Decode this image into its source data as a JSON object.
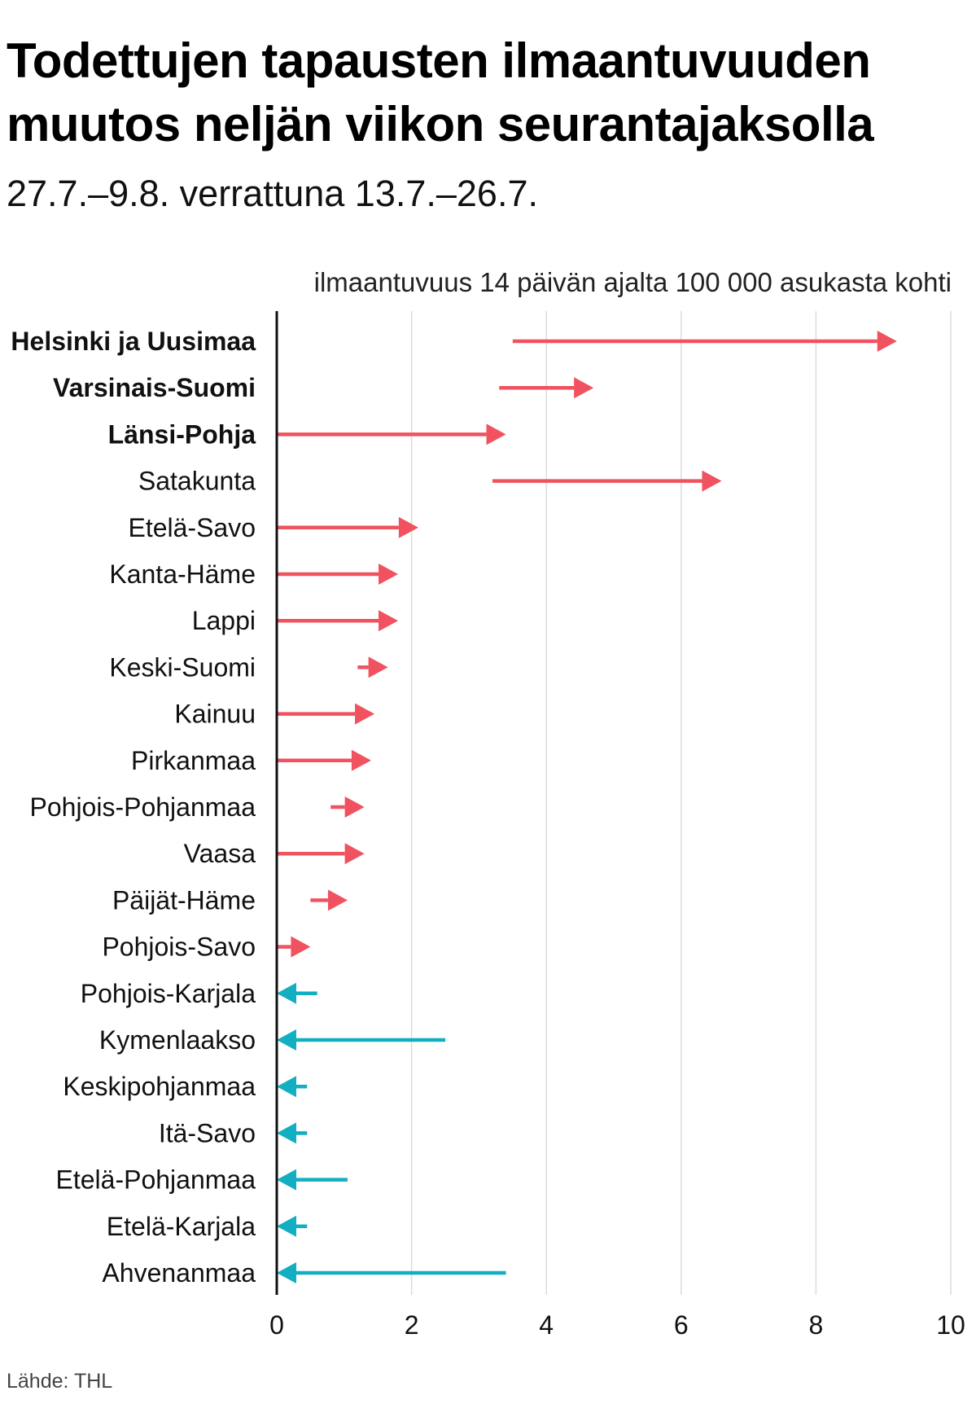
{
  "title": "Todettujen tapausten ilmaantuvuuden muutos neljän viikon seurantajaksolla",
  "subtitle": "27.7.–9.8. verrattuna 13.7.–26.7.",
  "source": "Lähde: THL",
  "colors": {
    "increase": "#f0525f",
    "decrease": "#12aec1",
    "grid": "#dcdcdc",
    "axis": "#111111"
  },
  "chart_data": {
    "type": "arrow",
    "xlabel": "ilmaantuvuus 14 päivän ajalta 100 000 asukasta kohti",
    "xlim": [
      0,
      10
    ],
    "xticks": [
      0,
      2,
      4,
      6,
      8,
      10
    ],
    "grid": true,
    "series": [
      {
        "name": "13.7.–26.7.",
        "role": "start"
      },
      {
        "name": "27.7.–9.8.",
        "role": "end"
      }
    ],
    "rows": [
      {
        "category": "Helsinki ja Uusimaa",
        "bold": true,
        "start": 3.5,
        "end": 9.2
      },
      {
        "category": "Varsinais-Suomi",
        "bold": true,
        "start": 3.3,
        "end": 4.7
      },
      {
        "category": "Länsi-Pohja",
        "bold": true,
        "start": 0.0,
        "end": 3.4
      },
      {
        "category": "Satakunta",
        "bold": false,
        "start": 3.2,
        "end": 6.6
      },
      {
        "category": "Etelä-Savo",
        "bold": false,
        "start": 0.0,
        "end": 2.1
      },
      {
        "category": "Kanta-Häme",
        "bold": false,
        "start": 0.0,
        "end": 1.8
      },
      {
        "category": "Lappi",
        "bold": false,
        "start": 0.0,
        "end": 1.8
      },
      {
        "category": "Keski-Suomi",
        "bold": false,
        "start": 1.2,
        "end": 1.65
      },
      {
        "category": "Kainuu",
        "bold": false,
        "start": 0.0,
        "end": 1.45
      },
      {
        "category": "Pirkanmaa",
        "bold": false,
        "start": 0.0,
        "end": 1.4
      },
      {
        "category": "Pohjois-Pohjanmaa",
        "bold": false,
        "start": 0.8,
        "end": 1.3
      },
      {
        "category": "Vaasa",
        "bold": false,
        "start": 0.0,
        "end": 1.3
      },
      {
        "category": "Päijät-Häme",
        "bold": false,
        "start": 0.5,
        "end": 1.05
      },
      {
        "category": "Pohjois-Savo",
        "bold": false,
        "start": 0.0,
        "end": 0.5
      },
      {
        "category": "Pohjois-Karjala",
        "bold": false,
        "start": 0.6,
        "end": 0.0
      },
      {
        "category": "Kymenlaakso",
        "bold": false,
        "start": 2.5,
        "end": 0.0
      },
      {
        "category": "Keskipohjanmaa",
        "bold": false,
        "start": 0.45,
        "end": 0.0
      },
      {
        "category": "Itä-Savo",
        "bold": false,
        "start": 0.45,
        "end": 0.0
      },
      {
        "category": "Etelä-Pohjanmaa",
        "bold": false,
        "start": 1.05,
        "end": 0.0
      },
      {
        "category": "Etelä-Karjala",
        "bold": false,
        "start": 0.45,
        "end": 0.0
      },
      {
        "category": "Ahvenanmaa",
        "bold": false,
        "start": 3.4,
        "end": 0.0
      }
    ]
  }
}
